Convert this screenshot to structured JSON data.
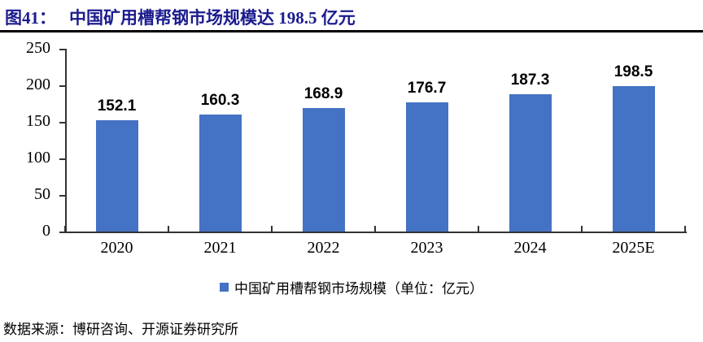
{
  "header": {
    "title_prefix": "图41：",
    "title_text": "中国矿用槽帮钢市场规模达 198.5 亿元"
  },
  "chart_data": {
    "type": "bar",
    "categories": [
      "2020",
      "2021",
      "2022",
      "2023",
      "2024",
      "2025E"
    ],
    "values": [
      152.1,
      160.3,
      168.9,
      176.7,
      187.3,
      198.5
    ],
    "title": "中国矿用槽帮钢市场规模达 198.5 亿元",
    "xlabel": "",
    "ylabel": "",
    "ylim": [
      0,
      250
    ],
    "yticks": [
      0,
      50,
      100,
      150,
      200,
      250
    ],
    "grid": false,
    "legend_position": "bottom",
    "bar_color": "#4472C4",
    "series_name": "中国矿用槽帮钢市场规模（单位：亿元）"
  },
  "legend": {
    "label": "中国矿用槽帮钢市场规模（单位：亿元）",
    "marker_color": "#4472C4"
  },
  "footer": {
    "source": "数据来源：博研咨询、开源证券研究所"
  },
  "colors": {
    "title": "#1b1b8e",
    "bar": "#4472C4",
    "axis": "#333333",
    "rule": "#000000"
  }
}
